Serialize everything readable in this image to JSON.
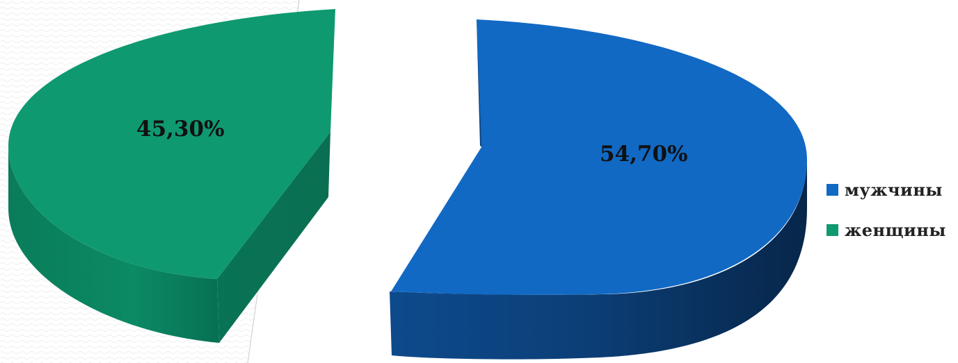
{
  "chart_data": {
    "type": "pie",
    "style": "3d-exploded",
    "categories": [
      "мужчины",
      "женщины"
    ],
    "values": [
      54.7,
      45.3
    ],
    "labels": [
      "54,70%",
      "45,30%"
    ],
    "colors": [
      "#1169C3",
      "#0F9971"
    ],
    "legend_position": "right",
    "title": ""
  }
}
